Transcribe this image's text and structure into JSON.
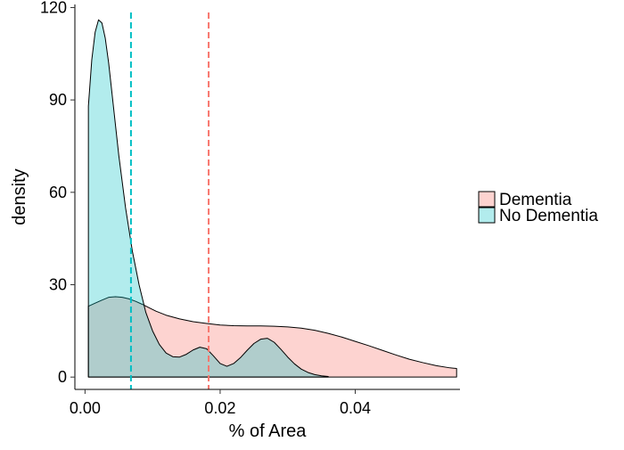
{
  "chart_data": {
    "type": "area",
    "title": "",
    "xlabel": "% of Area",
    "ylabel": "density",
    "xlim": [
      -0.0015,
      0.0555
    ],
    "ylim": [
      -4,
      121
    ],
    "x_ticks": [
      0.0,
      0.02,
      0.04
    ],
    "x_tick_labels": [
      "0.00",
      "0.02",
      "0.04"
    ],
    "y_ticks": [
      0,
      30,
      60,
      90,
      120
    ],
    "y_tick_labels": [
      "0",
      "30",
      "60",
      "90",
      "120"
    ],
    "grid": false,
    "legend_position": "right",
    "series": [
      {
        "name": "Dementia",
        "fill": "#F8766D",
        "fill_opacity": 0.32,
        "mean": 0.0183,
        "mean_line_color": "#F8766D",
        "x": [
          0.0005,
          0.0015,
          0.0025,
          0.0035,
          0.0045,
          0.0055,
          0.0065,
          0.0075,
          0.0085,
          0.0095,
          0.0105,
          0.012,
          0.014,
          0.016,
          0.018,
          0.02,
          0.022,
          0.024,
          0.026,
          0.028,
          0.03,
          0.032,
          0.034,
          0.036,
          0.038,
          0.04,
          0.042,
          0.044,
          0.046,
          0.048,
          0.05,
          0.052,
          0.054,
          0.055
        ],
        "y": [
          23,
          24,
          25,
          25.9,
          26.1,
          25.9,
          25.4,
          24.6,
          23.6,
          22.5,
          21.4,
          20.1,
          18.9,
          18,
          17.4,
          16.9,
          16.7,
          16.6,
          16.6,
          16.5,
          16.3,
          15.9,
          15.2,
          14.2,
          13,
          11.6,
          10.2,
          8.7,
          7.2,
          5.8,
          4.7,
          3.7,
          3,
          2.8
        ]
      },
      {
        "name": "No Dementia",
        "fill": "#00BFC4",
        "fill_opacity": 0.3,
        "mean": 0.0068,
        "mean_line_color": "#00BFC4",
        "x": [
          0.0005,
          0.001,
          0.0015,
          0.002,
          0.0025,
          0.003,
          0.0035,
          0.004,
          0.005,
          0.006,
          0.007,
          0.008,
          0.009,
          0.01,
          0.011,
          0.012,
          0.013,
          0.014,
          0.015,
          0.016,
          0.017,
          0.018,
          0.019,
          0.02,
          0.021,
          0.022,
          0.023,
          0.024,
          0.025,
          0.026,
          0.027,
          0.028,
          0.029,
          0.03,
          0.031,
          0.032,
          0.033,
          0.034,
          0.035,
          0.036
        ],
        "y": [
          88,
          103,
          112,
          116,
          115,
          110,
          102,
          92,
          72,
          55,
          41,
          30,
          21,
          15,
          10.6,
          7.8,
          6.6,
          6.5,
          7.4,
          8.8,
          9.7,
          9.2,
          6.9,
          4.4,
          3.5,
          4.4,
          6.3,
          8.7,
          10.9,
          12.3,
          12.6,
          11.3,
          9,
          6.5,
          4.3,
          2.6,
          1.5,
          0.8,
          0.4,
          0.2
        ]
      }
    ]
  }
}
